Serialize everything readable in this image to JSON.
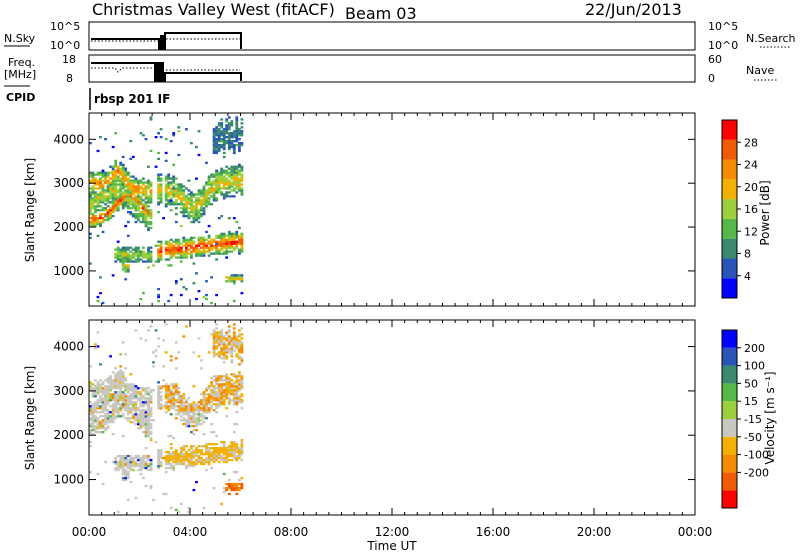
{
  "header": {
    "title": "Christmas Valley West (fitACF)",
    "beam": "Beam 03",
    "date": "22/Jun/2013"
  },
  "colors": {
    "power_scale": [
      "#0000ff",
      "#2a55b8",
      "#3a8a6e",
      "#57b84a",
      "#9bcf3c",
      "#f2b000",
      "#f58a00",
      "#f05a00",
      "#ff0000"
    ],
    "velocity_scale": [
      "#ff0000",
      "#f05a00",
      "#f58a00",
      "#f2b000",
      "#c8c8c0",
      "#9bcf3c",
      "#57b84a",
      "#3a8a6e",
      "#2a55b8",
      "#0000ff"
    ]
  },
  "panels": {
    "nsky": {
      "label": "N.Sky",
      "left_ticks": [
        "10^5",
        "10^0"
      ],
      "right_ticks": [
        "10^5",
        "10^0"
      ],
      "right_label": "N.Search"
    },
    "freq": {
      "label_line1": "Freq.",
      "label_line2": "[MHz]",
      "left_ticks": [
        "18",
        "8"
      ],
      "right_ticks": [
        "60",
        "0"
      ],
      "right_label": "Nave"
    },
    "cpid": {
      "label": "CPID",
      "value": "rbsp 201 IF"
    }
  },
  "chart_data": [
    {
      "type": "heatmap",
      "name": "power",
      "ylabel": "Slant Range [km]",
      "yticks": [
        1000,
        2000,
        3000,
        4000
      ],
      "ylim": [
        200,
        4600
      ],
      "colorbar_label": "Power [dB]",
      "colorbar_ticks": [
        4,
        8,
        12,
        16,
        20,
        24,
        28
      ],
      "colorbar_range": [
        0,
        32
      ],
      "data_extent_hours": [
        0,
        6
      ]
    },
    {
      "type": "heatmap",
      "name": "velocity",
      "ylabel": "Slant Range [km]",
      "yticks": [
        1000,
        2000,
        3000,
        4000
      ],
      "ylim": [
        200,
        4600
      ],
      "colorbar_label": "Velocity [m s⁻¹]",
      "colorbar_ticks": [
        "200",
        "100",
        "50",
        "15",
        "-15",
        "-50",
        "-100",
        "-200"
      ],
      "data_extent_hours": [
        0,
        6
      ]
    }
  ],
  "xaxis": {
    "label": "Time UT",
    "ticks": [
      "00:00",
      "04:00",
      "08:00",
      "12:00",
      "16:00",
      "20:00",
      "00:00"
    ],
    "range_hours": [
      0,
      24
    ]
  }
}
